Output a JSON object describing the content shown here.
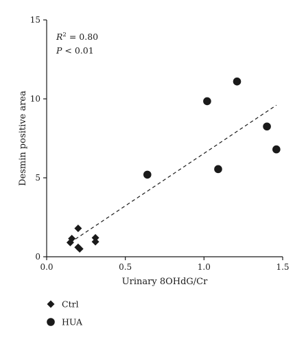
{
  "chart_data": {
    "type": "scatter",
    "title": "",
    "xlabel": "Urinary 8OHdG/Cr",
    "ylabel": "Desmin positive area",
    "xlim": [
      0.0,
      1.5
    ],
    "ylim": [
      0,
      15
    ],
    "xticks": [
      0.0,
      0.5,
      1.0,
      1.5
    ],
    "xtick_labels": [
      "0.0",
      "0.5",
      "1.0",
      "1.5"
    ],
    "yticks": [
      0,
      5,
      10,
      15
    ],
    "ytick_labels": [
      "0",
      "5",
      "10",
      "15"
    ],
    "grid": false,
    "legend_position": "bottom-left",
    "annotation": {
      "r2_label": "R",
      "r2_sup": "2",
      "r2_value": " = 0.80",
      "p_label": "P",
      "p_value": " < 0.01"
    },
    "series": [
      {
        "name": "Ctrl",
        "marker": "diamond",
        "color": "#1a1a1a",
        "points": [
          {
            "x": 0.15,
            "y": 0.9
          },
          {
            "x": 0.16,
            "y": 1.15
          },
          {
            "x": 0.2,
            "y": 1.8
          },
          {
            "x": 0.2,
            "y": 0.6
          },
          {
            "x": 0.21,
            "y": 0.5
          },
          {
            "x": 0.31,
            "y": 1.2
          },
          {
            "x": 0.31,
            "y": 0.95
          }
        ]
      },
      {
        "name": "HUA",
        "marker": "circle",
        "color": "#1a1a1a",
        "points": [
          {
            "x": 0.64,
            "y": 5.2
          },
          {
            "x": 1.02,
            "y": 9.85
          },
          {
            "x": 1.09,
            "y": 5.55
          },
          {
            "x": 1.21,
            "y": 11.1
          },
          {
            "x": 1.4,
            "y": 8.25
          },
          {
            "x": 1.46,
            "y": 6.8
          }
        ]
      }
    ],
    "trendline": {
      "style": "dashed",
      "from": {
        "x": 0.15,
        "y": 0.9
      },
      "to": {
        "x": 1.46,
        "y": 9.6
      }
    }
  }
}
